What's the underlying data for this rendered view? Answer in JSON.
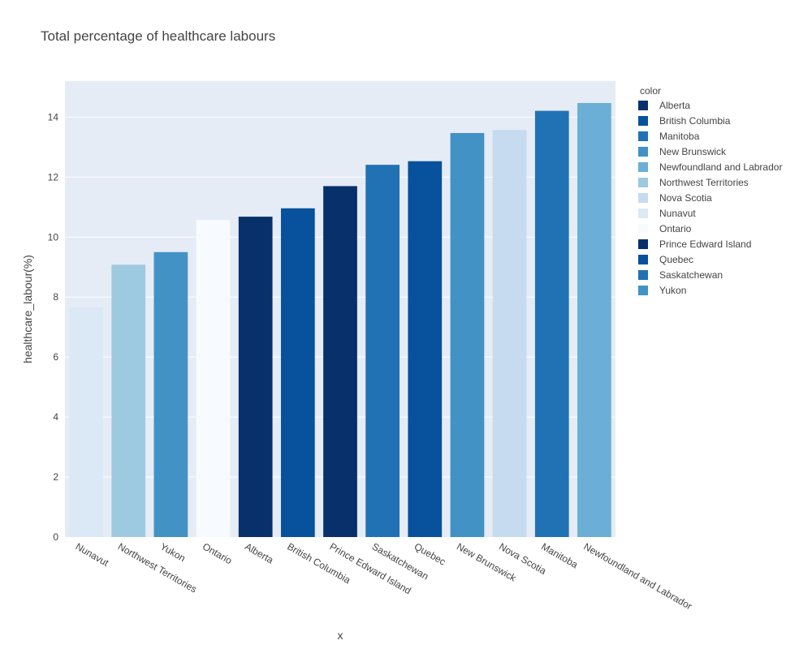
{
  "chart_data": {
    "type": "bar",
    "title": "Total percentage of healthcare labours",
    "xlabel": "x",
    "ylabel": "healthcare_labour(%)",
    "ylim": [
      0,
      15.2
    ],
    "yticks": [
      0,
      2,
      4,
      6,
      8,
      10,
      12,
      14
    ],
    "grid": true,
    "legend_title": "color",
    "legend_position": "right",
    "plot_background": "#e5ecf6",
    "categories": [
      "Nunavut",
      "Northwest Territories",
      "Yukon",
      "Ontario",
      "Alberta",
      "British Columbia",
      "Prince Edward Island",
      "Saskatchewan",
      "Quebec",
      "New Brunswick",
      "Nova Scotia",
      "Manitoba",
      "Newfoundland and Labrador"
    ],
    "values": [
      7.65,
      9.08,
      9.5,
      10.57,
      10.68,
      10.96,
      11.7,
      12.41,
      12.53,
      13.47,
      13.57,
      14.21,
      14.47
    ],
    "bar_colors": [
      "#dbe9f6",
      "#9ecae1",
      "#4292c6",
      "#f7fbff",
      "#08306b",
      "#08519c",
      "#08306b",
      "#2171b5",
      "#08519c",
      "#4292c6",
      "#c6dbef",
      "#2171b5",
      "#6baed6"
    ],
    "legend": [
      {
        "name": "Alberta",
        "color": "#08306b"
      },
      {
        "name": "British Columbia",
        "color": "#08519c"
      },
      {
        "name": "Manitoba",
        "color": "#2171b5"
      },
      {
        "name": "New Brunswick",
        "color": "#4292c6"
      },
      {
        "name": "Newfoundland and Labrador",
        "color": "#6baed6"
      },
      {
        "name": "Northwest Territories",
        "color": "#9ecae1"
      },
      {
        "name": "Nova Scotia",
        "color": "#c6dbef"
      },
      {
        "name": "Nunavut",
        "color": "#dbe9f6"
      },
      {
        "name": "Ontario",
        "color": "#f7fbff"
      },
      {
        "name": "Prince Edward Island",
        "color": "#08306b"
      },
      {
        "name": "Quebec",
        "color": "#08519c"
      },
      {
        "name": "Saskatchewan",
        "color": "#2171b5"
      },
      {
        "name": "Yukon",
        "color": "#4292c6"
      }
    ]
  }
}
